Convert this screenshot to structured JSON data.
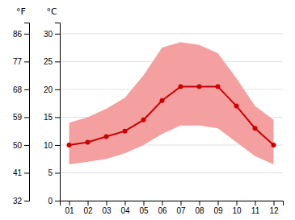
{
  "chart_data": {
    "type": "line",
    "x": [
      1,
      2,
      3,
      4,
      5,
      6,
      7,
      8,
      9,
      10,
      11,
      12
    ],
    "xlim": [
      0.5,
      12.5
    ],
    "xticks": [
      {
        "value": 1,
        "label": "01"
      },
      {
        "value": 2,
        "label": "02"
      },
      {
        "value": 3,
        "label": "03"
      },
      {
        "value": 4,
        "label": "04"
      },
      {
        "value": 5,
        "label": "05"
      },
      {
        "value": 6,
        "label": "06"
      },
      {
        "value": 7,
        "label": "07"
      },
      {
        "value": 8,
        "label": "08"
      },
      {
        "value": 9,
        "label": "09"
      },
      {
        "value": 10,
        "label": "10"
      },
      {
        "value": 11,
        "label": "11"
      },
      {
        "value": 12,
        "label": "12"
      }
    ],
    "ylim": [
      0,
      32
    ],
    "yticks": [
      0,
      5,
      10,
      15,
      20,
      25,
      30
    ],
    "ylabel": "°C",
    "y2lim": [
      32,
      89.6
    ],
    "y2ticks": [
      32,
      41,
      50,
      59,
      68,
      77,
      86
    ],
    "y2label": "°F",
    "grid": true,
    "series": [
      {
        "type": "band",
        "color": "#f5a0a0",
        "high": [
          14.0,
          15.0,
          16.5,
          18.5,
          22.5,
          27.5,
          28.5,
          28.0,
          26.5,
          22.0,
          17.0,
          14.5
        ],
        "low": [
          6.5,
          7.0,
          7.5,
          8.5,
          10.0,
          12.0,
          13.5,
          13.5,
          13.0,
          10.5,
          8.0,
          6.5
        ]
      },
      {
        "type": "line",
        "color": "#cc0000",
        "marker": "circle",
        "values": [
          10.0,
          10.5,
          11.5,
          12.5,
          14.5,
          18.0,
          20.5,
          20.5,
          20.5,
          17.0,
          13.0,
          10.0
        ]
      }
    ]
  }
}
